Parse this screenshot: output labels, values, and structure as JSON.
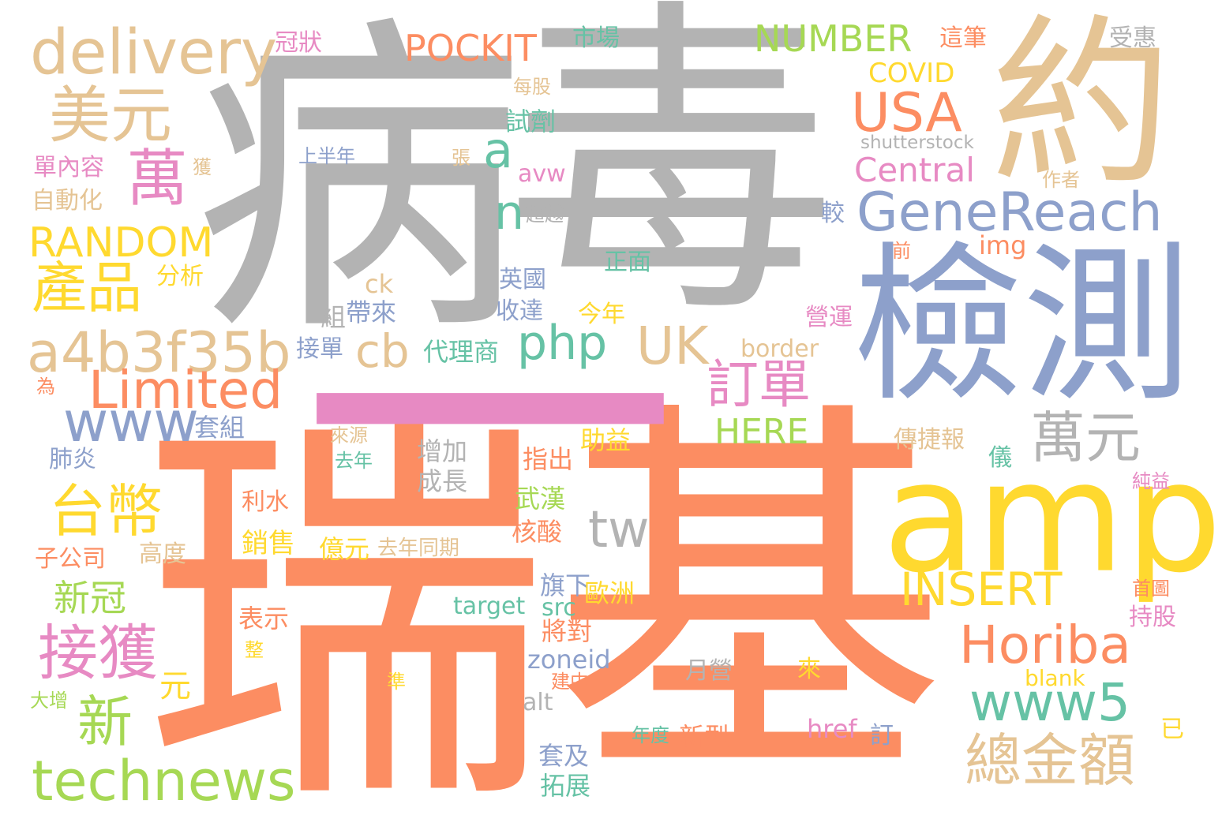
{
  "palette": {
    "gray": "#b3b3b3",
    "orange": "#fc8d62",
    "tan": "#e5c494",
    "yellow": "#ffd92f",
    "blue": "#8da0cb",
    "teal": "#66c2a5",
    "green": "#a6d854",
    "pink": "#e78ac3"
  },
  "words": [
    {
      "text": "病",
      "color": "gray"
    },
    {
      "text": "毒",
      "color": "gray"
    },
    {
      "text": "瑞",
      "color": "orange"
    },
    {
      "text": "基",
      "color": "orange"
    },
    {
      "text": "約",
      "color": "tan"
    },
    {
      "text": "檢測",
      "color": "blue"
    },
    {
      "text": "amp",
      "color": "yellow"
    },
    {
      "text": "一",
      "color": "pink"
    },
    {
      "text": "delivery",
      "color": "tan"
    },
    {
      "text": "美元",
      "color": "tan"
    },
    {
      "text": "萬",
      "color": "pink"
    },
    {
      "text": "RANDOM",
      "color": "yellow"
    },
    {
      "text": "產品",
      "color": "yellow"
    },
    {
      "text": "a4b3f35b",
      "color": "tan"
    },
    {
      "text": "Limited",
      "color": "orange"
    },
    {
      "text": "www",
      "color": "blue"
    },
    {
      "text": "台幣",
      "color": "yellow"
    },
    {
      "text": "接獲",
      "color": "pink"
    },
    {
      "text": "新冠",
      "color": "green"
    },
    {
      "text": "新",
      "color": "green"
    },
    {
      "text": "technews",
      "color": "green"
    },
    {
      "text": "POCKIT",
      "color": "orange"
    },
    {
      "text": "NUMBER",
      "color": "green"
    },
    {
      "text": "USA",
      "color": "orange"
    },
    {
      "text": "GeneReach",
      "color": "blue"
    },
    {
      "text": "Central",
      "color": "pink"
    },
    {
      "text": "php",
      "color": "teal"
    },
    {
      "text": "UK",
      "color": "tan"
    },
    {
      "text": "cb",
      "color": "tan"
    },
    {
      "text": "a",
      "color": "teal"
    },
    {
      "text": "n",
      "color": "teal"
    },
    {
      "text": "訂單",
      "color": "pink"
    },
    {
      "text": "萬元",
      "color": "gray"
    },
    {
      "text": "HERE",
      "color": "green"
    },
    {
      "text": "INSERT",
      "color": "yellow"
    },
    {
      "text": "Horiba",
      "color": "orange"
    },
    {
      "text": "www5",
      "color": "teal"
    },
    {
      "text": "總金額",
      "color": "tan"
    },
    {
      "text": "tw",
      "color": "gray"
    },
    {
      "text": "COVID",
      "color": "yellow"
    },
    {
      "text": "shutterstock",
      "color": "gray"
    },
    {
      "text": "這筆",
      "color": "orange"
    },
    {
      "text": "受惠",
      "color": "gray"
    },
    {
      "text": "市場",
      "color": "teal"
    },
    {
      "text": "冠狀",
      "color": "pink"
    },
    {
      "text": "每股",
      "color": "tan"
    },
    {
      "text": "試劑",
      "color": "teal"
    },
    {
      "text": "上半年",
      "color": "blue"
    },
    {
      "text": "張",
      "color": "tan"
    },
    {
      "text": "獲",
      "color": "tan"
    },
    {
      "text": "單內容",
      "color": "pink"
    },
    {
      "text": "自動化",
      "color": "tan"
    },
    {
      "text": "avw",
      "color": "pink"
    },
    {
      "text": "作者",
      "color": "tan"
    },
    {
      "text": "超越",
      "color": "gray"
    },
    {
      "text": "較",
      "color": "blue"
    },
    {
      "text": "img",
      "color": "orange"
    },
    {
      "text": "前",
      "color": "orange"
    },
    {
      "text": "正面",
      "color": "teal"
    },
    {
      "text": "分析",
      "color": "yellow"
    },
    {
      "text": "ck",
      "color": "tan"
    },
    {
      "text": "英國",
      "color": "blue"
    },
    {
      "text": "收達",
      "color": "blue"
    },
    {
      "text": "帶來",
      "color": "blue"
    },
    {
      "text": "組",
      "color": "gray"
    },
    {
      "text": "今年",
      "color": "yellow"
    },
    {
      "text": "營運",
      "color": "pink"
    },
    {
      "text": "接單",
      "color": "blue"
    },
    {
      "text": "代理商",
      "color": "teal"
    },
    {
      "text": "border",
      "color": "tan"
    },
    {
      "text": "為",
      "color": "orange"
    },
    {
      "text": "套組",
      "color": "blue"
    },
    {
      "text": "來源",
      "color": "tan"
    },
    {
      "text": "肺炎",
      "color": "blue"
    },
    {
      "text": "去年",
      "color": "teal"
    },
    {
      "text": "增加",
      "color": "gray"
    },
    {
      "text": "成長",
      "color": "gray"
    },
    {
      "text": "指出",
      "color": "orange"
    },
    {
      "text": "助益",
      "color": "yellow"
    },
    {
      "text": "傳捷報",
      "color": "tan"
    },
    {
      "text": "儀",
      "color": "teal"
    },
    {
      "text": "純益",
      "color": "pink"
    },
    {
      "text": "利水",
      "color": "orange"
    },
    {
      "text": "武漢",
      "color": "green"
    },
    {
      "text": "核酸",
      "color": "orange"
    },
    {
      "text": "銷售",
      "color": "yellow"
    },
    {
      "text": "億元",
      "color": "yellow"
    },
    {
      "text": "去年同期",
      "color": "tan"
    },
    {
      "text": "子公司",
      "color": "orange"
    },
    {
      "text": "高度",
      "color": "tan"
    },
    {
      "text": "首圖",
      "color": "orange"
    },
    {
      "text": "旗下",
      "color": "blue"
    },
    {
      "text": "歐洲",
      "color": "yellow"
    },
    {
      "text": "target",
      "color": "teal"
    },
    {
      "text": "src",
      "color": "teal"
    },
    {
      "text": "表示",
      "color": "orange"
    },
    {
      "text": "將對",
      "color": "orange"
    },
    {
      "text": "持股",
      "color": "pink"
    },
    {
      "text": "zoneid",
      "color": "blue"
    },
    {
      "text": "整",
      "color": "yellow"
    },
    {
      "text": "元",
      "color": "yellow"
    },
    {
      "text": "月營",
      "color": "gray"
    },
    {
      "text": "來",
      "color": "yellow"
    },
    {
      "text": "建中",
      "color": "orange"
    },
    {
      "text": "blank",
      "color": "yellow"
    },
    {
      "text": "準",
      "color": "yellow"
    },
    {
      "text": "alt",
      "color": "gray"
    },
    {
      "text": "大增",
      "color": "green"
    },
    {
      "text": "年度",
      "color": "teal"
    },
    {
      "text": "新型",
      "color": "orange"
    },
    {
      "text": "href",
      "color": "pink"
    },
    {
      "text": "訂",
      "color": "blue"
    },
    {
      "text": "已",
      "color": "yellow"
    },
    {
      "text": "套及",
      "color": "blue"
    },
    {
      "text": "拓展",
      "color": "teal"
    }
  ]
}
